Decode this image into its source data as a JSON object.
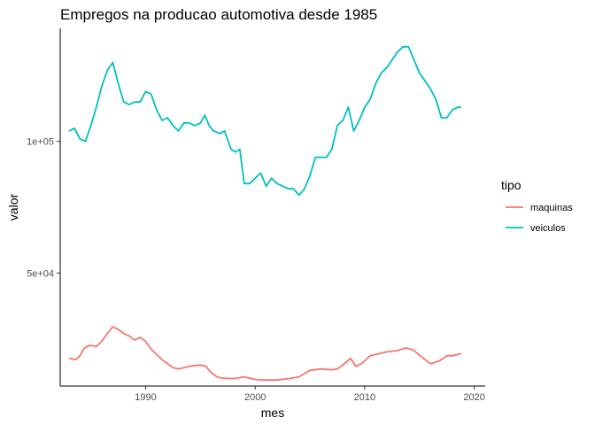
{
  "chart_data": {
    "type": "line",
    "title": "Empregos na producao automotiva desde 1985",
    "xlabel": "mes",
    "ylabel": "valor",
    "xlim": [
      1982.2,
      2021.0
    ],
    "ylim": [
      7000,
      143000
    ],
    "x_ticks": [
      1990,
      2000,
      2010,
      2020
    ],
    "x_tick_labels": [
      "1990",
      "2000",
      "2010",
      "2020"
    ],
    "y_ticks": [
      50000,
      100000
    ],
    "y_tick_labels": [
      "5e+04",
      "1e+05"
    ],
    "legend": {
      "title": "tipo",
      "position": "right"
    },
    "series": [
      {
        "name": "maquinas",
        "color": "#F8766D",
        "x": [
          1983.0,
          1983.6,
          1984.0,
          1984.4,
          1984.9,
          1985.5,
          1986.0,
          1986.5,
          1987.0,
          1987.5,
          1988.0,
          1988.5,
          1989.0,
          1989.5,
          1990.0,
          1990.5,
          1991.0,
          1991.5,
          1992.0,
          1992.5,
          1993.0,
          1994.0,
          1995.0,
          1995.5,
          1996.0,
          1996.5,
          1997.0,
          1998.0,
          1999.0,
          2000.0,
          2001.0,
          2002.0,
          2003.0,
          2004.0,
          2005.0,
          2006.0,
          2007.0,
          2007.5,
          2008.0,
          2008.7,
          2009.2,
          2009.7,
          2010.5,
          2011.0,
          2012.0,
          2013.0,
          2013.8,
          2014.5,
          2015.2,
          2016.0,
          2016.8,
          2017.5,
          2018.0,
          2018.5,
          2018.8
        ],
        "values": [
          17500,
          17000,
          18500,
          21500,
          22500,
          22000,
          24000,
          27000,
          29500,
          28500,
          27000,
          26000,
          24500,
          25500,
          24000,
          21000,
          19000,
          17000,
          15500,
          14000,
          13500,
          14500,
          15000,
          14500,
          12000,
          10500,
          10000,
          9800,
          10500,
          9500,
          9300,
          9300,
          9800,
          10500,
          13000,
          13500,
          13200,
          13500,
          15000,
          17500,
          14500,
          15500,
          18500,
          19000,
          20000,
          20500,
          21500,
          20500,
          18000,
          15500,
          16500,
          18500,
          18500,
          19000,
          19500
        ]
      },
      {
        "name": "veiculos",
        "color": "#00BFC4",
        "x": [
          1983.0,
          1983.5,
          1984.0,
          1984.5,
          1985.0,
          1985.5,
          1986.0,
          1986.5,
          1987.0,
          1987.5,
          1988.0,
          1988.5,
          1989.0,
          1989.5,
          1990.0,
          1990.5,
          1991.0,
          1991.5,
          1992.0,
          1992.5,
          1993.0,
          1993.5,
          1994.0,
          1994.5,
          1995.0,
          1995.4,
          1995.8,
          1996.2,
          1996.8,
          1997.2,
          1997.8,
          1998.2,
          1998.6,
          1999.0,
          1999.5,
          2000.0,
          2000.5,
          2001.0,
          2001.5,
          2002.0,
          2002.5,
          2003.0,
          2003.5,
          2004.0,
          2004.5,
          2005.0,
          2005.5,
          2006.0,
          2006.5,
          2007.0,
          2007.5,
          2008.0,
          2008.5,
          2009.0,
          2009.5,
          2010.0,
          2010.5,
          2011.0,
          2011.5,
          2012.0,
          2012.5,
          2013.0,
          2013.5,
          2014.0,
          2014.5,
          2015.0,
          2015.5,
          2016.0,
          2016.5,
          2017.0,
          2017.5,
          2018.0,
          2018.5,
          2018.8
        ],
        "values": [
          104000,
          105000,
          101000,
          100000,
          106000,
          113000,
          121000,
          127000,
          130000,
          122000,
          115000,
          114000,
          115000,
          115000,
          119000,
          118000,
          112000,
          108000,
          109000,
          106000,
          104000,
          107000,
          107000,
          106000,
          107000,
          110000,
          106000,
          104000,
          103000,
          104000,
          97000,
          96000,
          97000,
          84000,
          84000,
          86000,
          88000,
          83000,
          86000,
          84000,
          83000,
          82000,
          82000,
          79500,
          82000,
          87000,
          94000,
          94000,
          94000,
          97000,
          106000,
          108000,
          113000,
          104000,
          108000,
          113000,
          116000,
          122000,
          126000,
          128000,
          131000,
          134000,
          136000,
          136000,
          131000,
          126000,
          123000,
          120000,
          116000,
          109000,
          109000,
          112000,
          113000,
          113000
        ]
      }
    ]
  }
}
